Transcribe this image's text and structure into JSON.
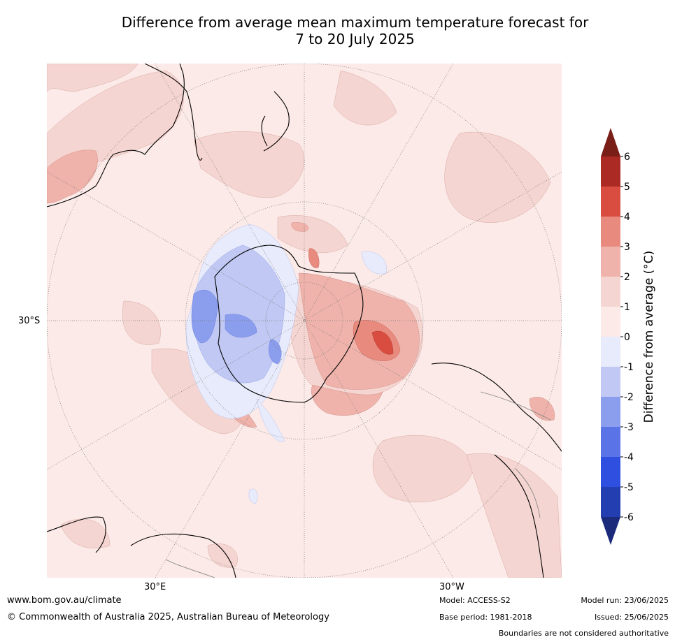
{
  "title": {
    "line1": "Difference from average mean maximum temperature forecast for",
    "line2": "7 to 20 July 2025"
  },
  "map": {
    "projection": "south-polar-stereographic",
    "latitude_label": "30°S",
    "longitude_labels": [
      "30°E",
      "30°W"
    ],
    "colors": {
      "ocean_background": "#fbeae8",
      "land_outline": "#000000",
      "border_outline": "#888888",
      "graticule": "#777777"
    }
  },
  "legend": {
    "title": "Difference from average (°C)",
    "tick_labels": [
      "6",
      "5",
      "4",
      "3",
      "2",
      "1",
      "0",
      "-1",
      "-2",
      "-3",
      "-4",
      "-5",
      "-6"
    ],
    "bins": [
      {
        "range": [
          5,
          6
        ],
        "color": "#ab2a23"
      },
      {
        "range": [
          4,
          5
        ],
        "color": "#d94c40"
      },
      {
        "range": [
          3,
          4
        ],
        "color": "#e88a7e"
      },
      {
        "range": [
          2,
          3
        ],
        "color": "#efb3ab"
      },
      {
        "range": [
          1,
          2
        ],
        "color": "#f5d5d1"
      },
      {
        "range": [
          0,
          1
        ],
        "color": "#fbeae8"
      },
      {
        "range": [
          -1,
          0
        ],
        "color": "#e8ebfb"
      },
      {
        "range": [
          -2,
          -1
        ],
        "color": "#c0c8f3"
      },
      {
        "range": [
          -3,
          -2
        ],
        "color": "#8b9ded"
      },
      {
        "range": [
          -4,
          -3
        ],
        "color": "#5a73e6"
      },
      {
        "range": [
          -5,
          -4
        ],
        "color": "#2f4fe0"
      },
      {
        "range": [
          -6,
          -5
        ],
        "color": "#233eb0"
      }
    ],
    "extend_max_color": "#7a1e18",
    "extend_min_color": "#1c2a7c"
  },
  "footer": {
    "website": "www.bom.gov.au/climate",
    "copyright": "© Commonwealth of Australia 2025, Australian Bureau of Meteorology",
    "model": "Model: ACCESS-S2",
    "base_period": "Base period: 1981-2018",
    "model_run": "Model run: 23/06/2025",
    "issued": "Issued: 25/06/2025",
    "disclaimer": "Boundaries are not considered authoritative"
  }
}
